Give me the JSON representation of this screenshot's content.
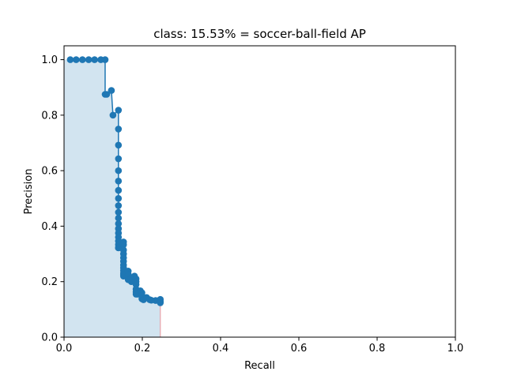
{
  "chart_data": {
    "type": "line",
    "title": "class: 15.53% = soccer-ball-field AP",
    "xlabel": "Recall",
    "ylabel": "Precision",
    "xlim": [
      0.0,
      1.0
    ],
    "ylim": [
      0.0,
      1.05
    ],
    "xticks": [
      "0.0",
      "0.2",
      "0.4",
      "0.6",
      "0.8",
      "1.0"
    ],
    "yticks": [
      "0.0",
      "0.2",
      "0.4",
      "0.6",
      "0.8",
      "1.0"
    ],
    "grid": false,
    "colors": {
      "line": "#1f77b4",
      "fill": "#1f77b4",
      "fill_edge": "#e8a0a8"
    },
    "series": [
      {
        "x": [
          0.016,
          0.031,
          0.047,
          0.063,
          0.078,
          0.094,
          0.105,
          0.105,
          0.109,
          0.121,
          0.125,
          0.139,
          0.139,
          0.139,
          0.139,
          0.139,
          0.139,
          0.139,
          0.139,
          0.139,
          0.139,
          0.139,
          0.139,
          0.139,
          0.139,
          0.139,
          0.139,
          0.139,
          0.139,
          0.139,
          0.139,
          0.152,
          0.152,
          0.152,
          0.152,
          0.152,
          0.152,
          0.152,
          0.152,
          0.152,
          0.152,
          0.152,
          0.152,
          0.152,
          0.164,
          0.164,
          0.164,
          0.172,
          0.172,
          0.176,
          0.18,
          0.184,
          0.184,
          0.184,
          0.184,
          0.184,
          0.184,
          0.188,
          0.195,
          0.199,
          0.199,
          0.199,
          0.203,
          0.211,
          0.219,
          0.223,
          0.234,
          0.246,
          0.246,
          0.246
        ],
        "y": [
          1.0,
          1.0,
          1.0,
          1.0,
          1.0,
          1.0,
          1.0,
          0.875,
          0.875,
          0.889,
          0.8,
          0.818,
          0.75,
          0.692,
          0.643,
          0.6,
          0.5625,
          0.529,
          0.5,
          0.474,
          0.45,
          0.429,
          0.409,
          0.391,
          0.375,
          0.36,
          0.346,
          0.333,
          0.322,
          0.322,
          0.322,
          0.343,
          0.333,
          0.314,
          0.3,
          0.286,
          0.273,
          0.26,
          0.25,
          0.24,
          0.231,
          0.225,
          0.22,
          0.225,
          0.238,
          0.226,
          0.207,
          0.214,
          0.2,
          0.205,
          0.22,
          0.21,
          0.2,
          0.19,
          0.173,
          0.163,
          0.155,
          0.155,
          0.167,
          0.16,
          0.15,
          0.138,
          0.135,
          0.143,
          0.135,
          0.133,
          0.132,
          0.136,
          0.128,
          0.124
        ]
      }
    ]
  }
}
